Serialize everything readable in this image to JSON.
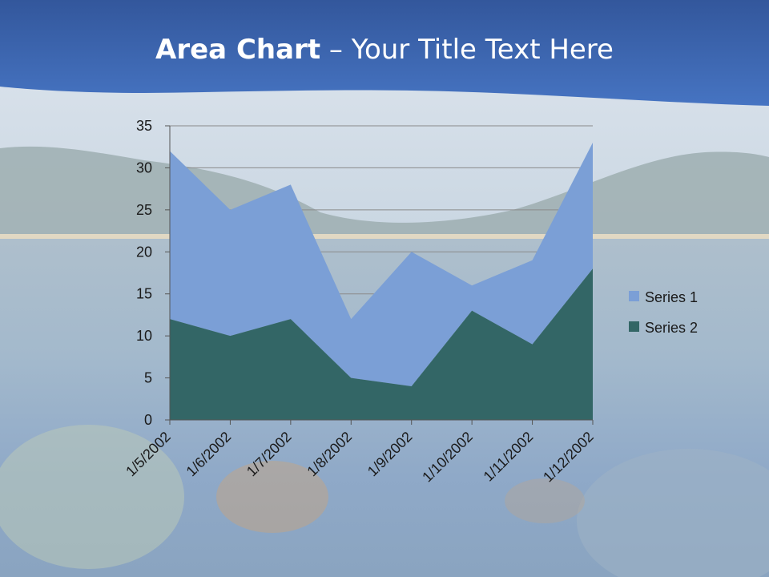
{
  "slide": {
    "title_bold": "Area Chart",
    "title_rest": " – Your Title Text Here"
  },
  "colors": {
    "header_blue": "#3f6fbf",
    "series1": "#7b9fd6",
    "series2": "#336666",
    "gridline": "#8a8a8a"
  },
  "chart_data": {
    "type": "area",
    "stacked": true,
    "categories": [
      "1/5/2002",
      "1/6/2002",
      "1/7/2002",
      "1/8/2002",
      "1/9/2002",
      "1/10/2002",
      "1/11/2002",
      "1/12/2002"
    ],
    "series": [
      {
        "name": "Series 1",
        "values": [
          20,
          15,
          16,
          7,
          16,
          3,
          10,
          15
        ],
        "totals": [
          32,
          25,
          28,
          12,
          20,
          16,
          19,
          33
        ]
      },
      {
        "name": "Series 2",
        "values": [
          12,
          10,
          12,
          5,
          4,
          13,
          9,
          18
        ]
      }
    ],
    "yticks": [
      0,
      5,
      10,
      15,
      20,
      25,
      30,
      35
    ],
    "ylim": [
      0,
      35
    ],
    "grid": true,
    "legend": "right"
  }
}
